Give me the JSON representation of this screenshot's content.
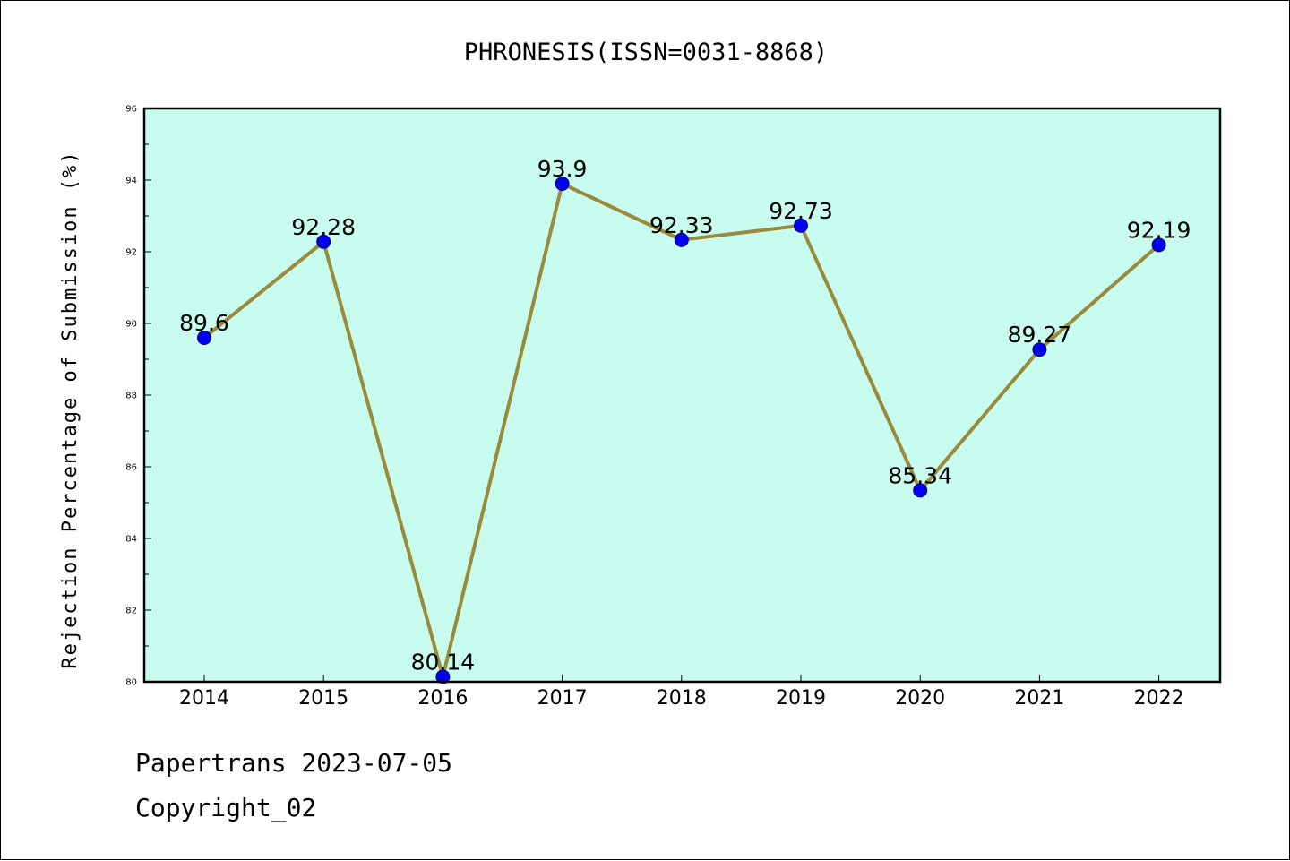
{
  "footer": {
    "line1": "Papertrans 2023-07-05",
    "line2": "Copyright_02"
  },
  "colors": {
    "plot_bg": "#c8fcee",
    "line": "#9a8a3c",
    "marker": "#0000ee",
    "axis": "#000000"
  },
  "chart_data": {
    "type": "line",
    "title": "PHRONESIS(ISSN=0031-8868)",
    "xlabel": "",
    "ylabel": "Rejection Percentage of Submission (%)",
    "ylim": [
      80,
      96
    ],
    "yticks": [
      "80",
      "82",
      "84",
      "86",
      "88",
      "90",
      "92",
      "94",
      "96"
    ],
    "grid": false,
    "x": [
      "2014",
      "2015",
      "2016",
      "2017",
      "2018",
      "2019",
      "2020",
      "2021",
      "2022"
    ],
    "series": [
      {
        "values": [
          89.6,
          92.28,
          80.14,
          93.9,
          92.33,
          92.73,
          85.34,
          89.27,
          92.19
        ],
        "labels": [
          "89.6",
          "92.28",
          "80.14",
          "93.9",
          "92.33",
          "92.73",
          "85.34",
          "89.27",
          "92.19"
        ]
      }
    ]
  }
}
